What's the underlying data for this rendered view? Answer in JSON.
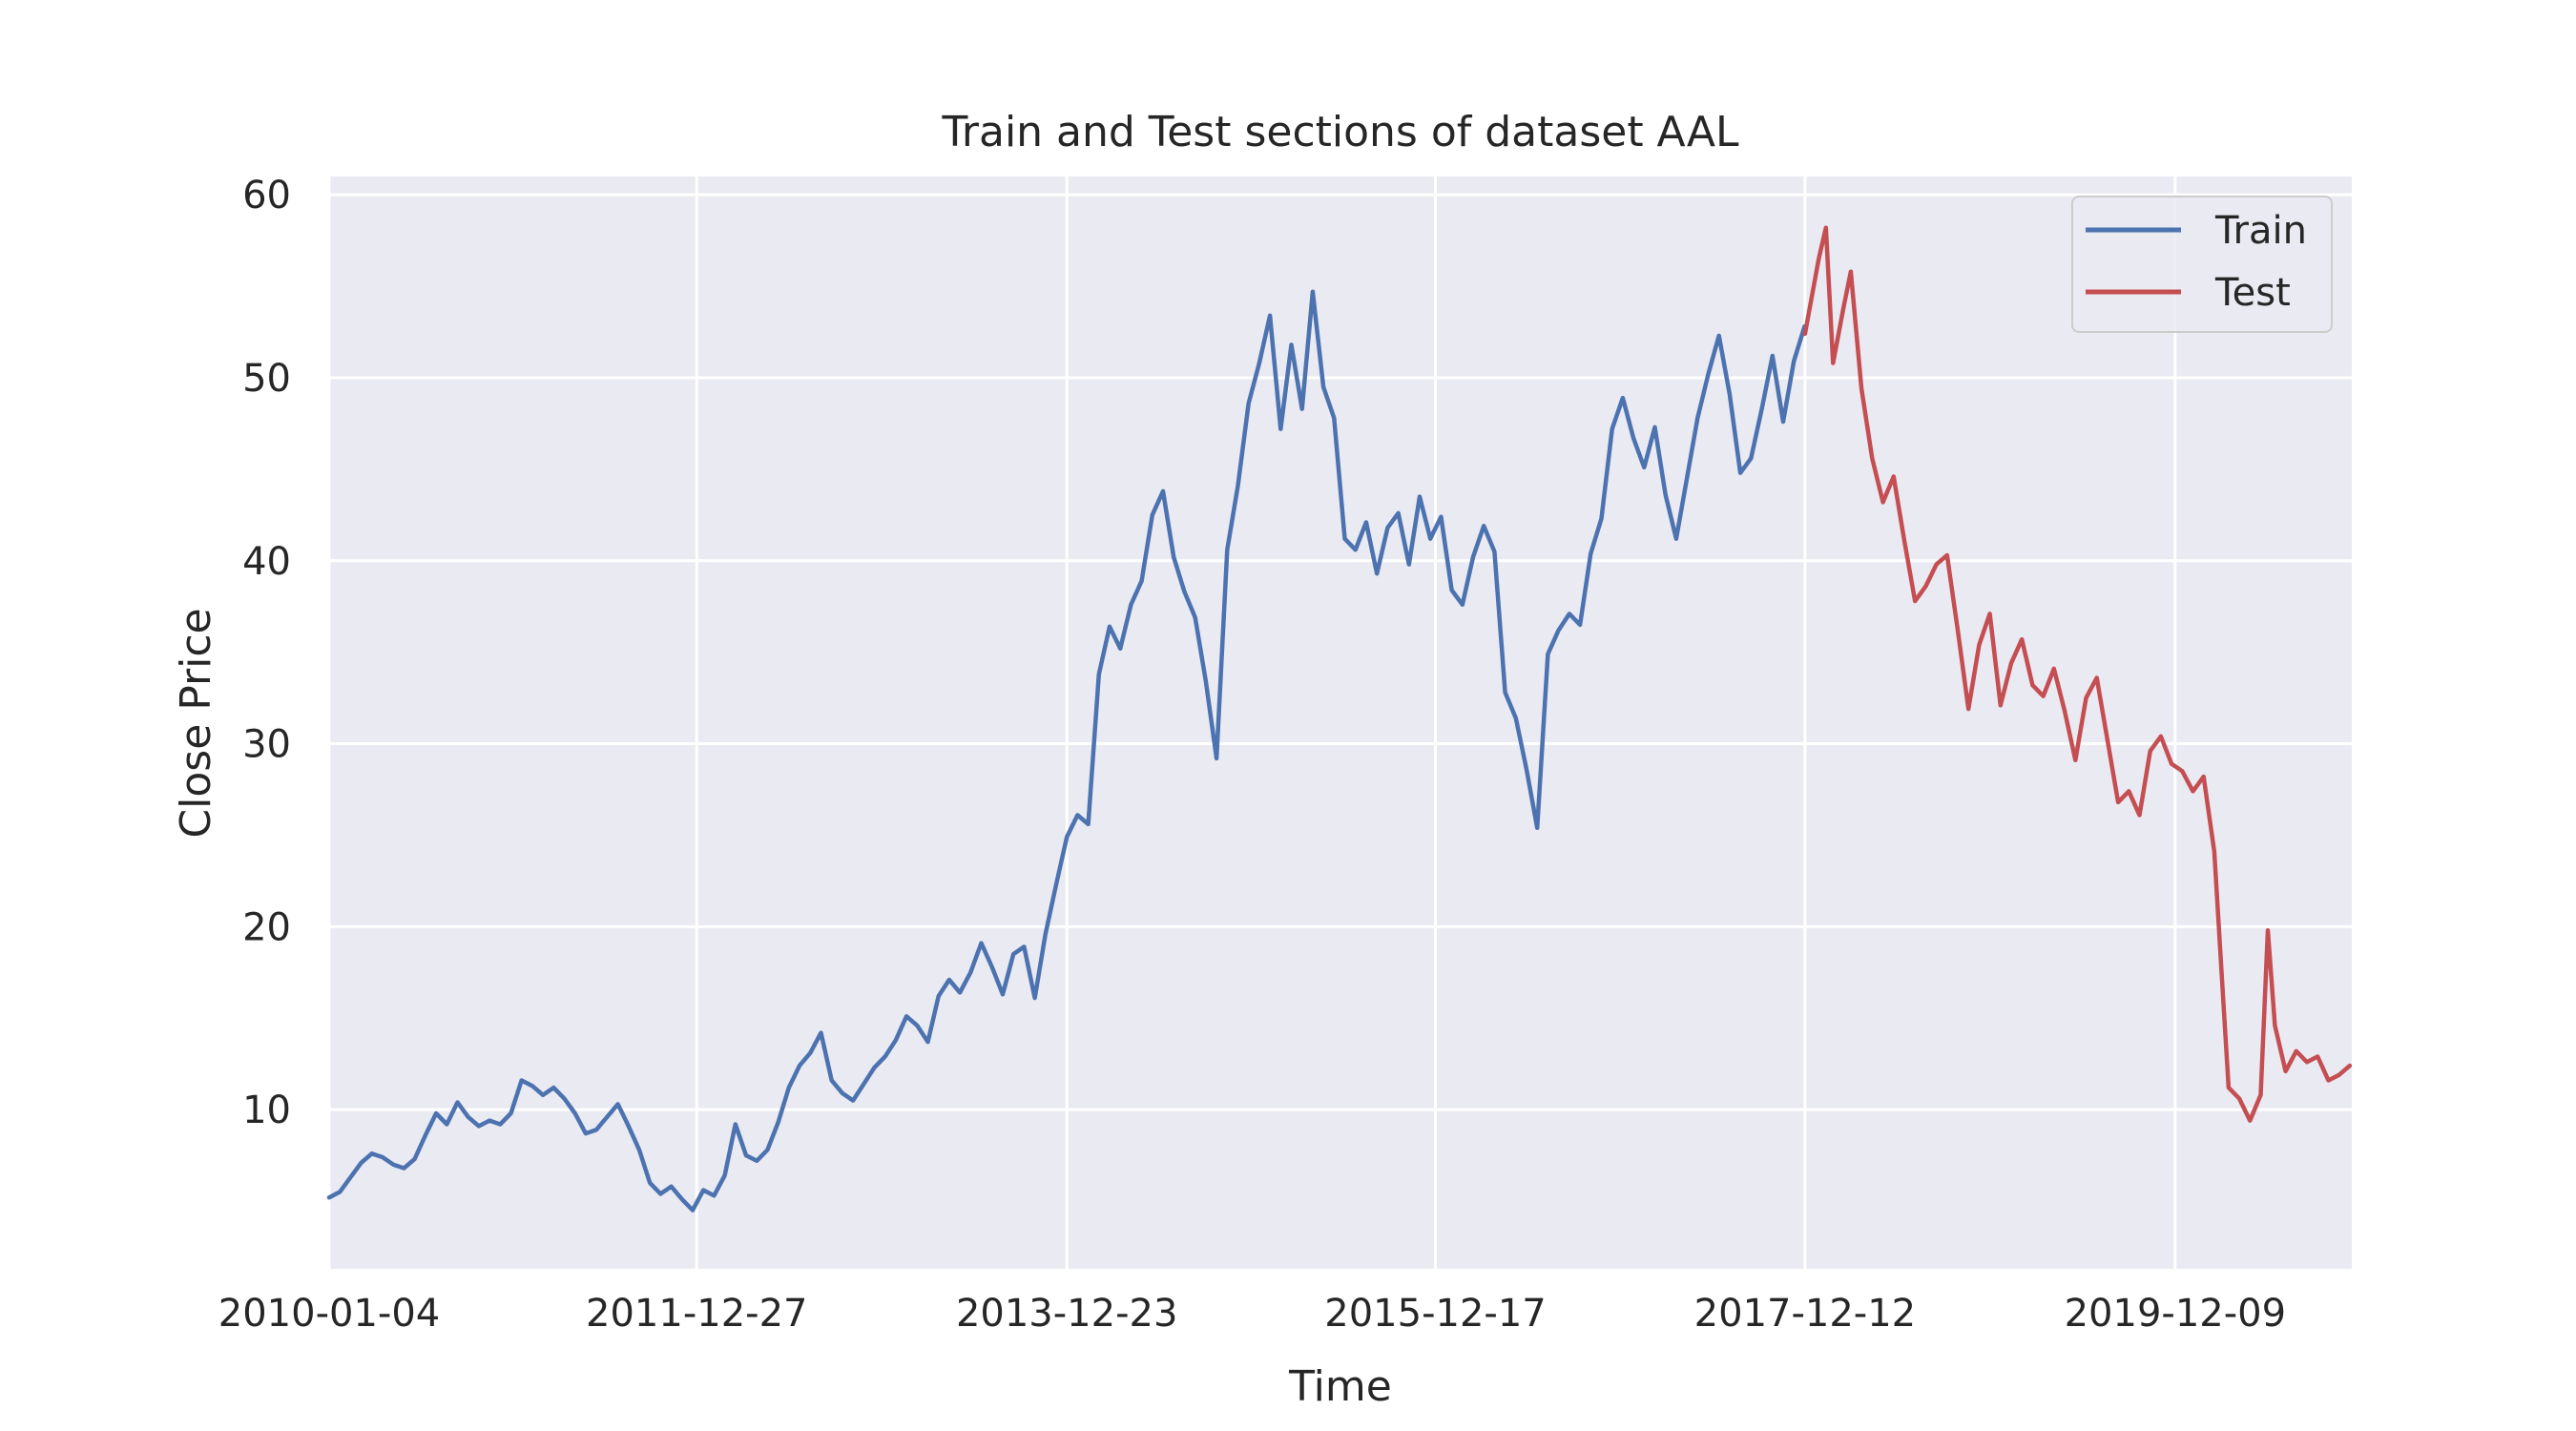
{
  "chart_data": {
    "type": "line",
    "title": "Train and Test sections of dataset AAL",
    "xlabel": "Time",
    "ylabel": "Close Price",
    "x_tick_labels": [
      "2010-01-04",
      "2011-12-27",
      "2013-12-23",
      "2015-12-17",
      "2017-12-12",
      "2019-12-09"
    ],
    "y_ticks": [
      10,
      20,
      30,
      40,
      50,
      60
    ],
    "xlim": [
      "2010-01-04",
      "2020-11-20"
    ],
    "ylim": [
      1.3,
      61.0
    ],
    "grid": true,
    "legend_position": "top-right",
    "series": [
      {
        "name": "Train",
        "color": "#4c72b0",
        "points": [
          [
            "2010-01-04",
            5.2
          ],
          [
            "2010-01-25",
            5.5
          ],
          [
            "2010-02-15",
            6.3
          ],
          [
            "2010-03-08",
            7.1
          ],
          [
            "2010-03-29",
            7.6
          ],
          [
            "2010-04-19",
            7.4
          ],
          [
            "2010-05-10",
            7.0
          ],
          [
            "2010-05-31",
            6.8
          ],
          [
            "2010-06-21",
            7.3
          ],
          [
            "2010-07-12",
            8.6
          ],
          [
            "2010-08-02",
            9.8
          ],
          [
            "2010-08-23",
            9.2
          ],
          [
            "2010-09-13",
            10.4
          ],
          [
            "2010-10-04",
            9.6
          ],
          [
            "2010-10-25",
            9.1
          ],
          [
            "2010-11-15",
            9.4
          ],
          [
            "2010-12-06",
            9.2
          ],
          [
            "2010-12-27",
            9.8
          ],
          [
            "2011-01-17",
            11.6
          ],
          [
            "2011-02-07",
            11.3
          ],
          [
            "2011-02-28",
            10.8
          ],
          [
            "2011-03-21",
            11.2
          ],
          [
            "2011-04-11",
            10.6
          ],
          [
            "2011-05-02",
            9.8
          ],
          [
            "2011-05-23",
            8.7
          ],
          [
            "2011-06-13",
            8.9
          ],
          [
            "2011-07-04",
            9.6
          ],
          [
            "2011-07-25",
            10.3
          ],
          [
            "2011-08-15",
            9.1
          ],
          [
            "2011-09-05",
            7.8
          ],
          [
            "2011-09-26",
            6.0
          ],
          [
            "2011-10-17",
            5.4
          ],
          [
            "2011-11-07",
            5.8
          ],
          [
            "2011-11-28",
            5.1
          ],
          [
            "2011-12-19",
            4.5
          ],
          [
            "2012-01-09",
            5.6
          ],
          [
            "2012-01-30",
            5.3
          ],
          [
            "2012-02-20",
            6.4
          ],
          [
            "2012-03-12",
            9.2
          ],
          [
            "2012-04-02",
            7.5
          ],
          [
            "2012-04-23",
            7.2
          ],
          [
            "2012-05-14",
            7.8
          ],
          [
            "2012-06-04",
            9.3
          ],
          [
            "2012-06-25",
            11.2
          ],
          [
            "2012-07-16",
            12.4
          ],
          [
            "2012-08-06",
            13.1
          ],
          [
            "2012-08-27",
            14.2
          ],
          [
            "2012-09-17",
            11.6
          ],
          [
            "2012-10-08",
            10.9
          ],
          [
            "2012-10-29",
            10.5
          ],
          [
            "2012-11-19",
            11.4
          ],
          [
            "2012-12-10",
            12.3
          ],
          [
            "2012-12-31",
            12.9
          ],
          [
            "2013-01-21",
            13.8
          ],
          [
            "2013-02-11",
            15.1
          ],
          [
            "2013-03-04",
            14.6
          ],
          [
            "2013-03-25",
            13.7
          ],
          [
            "2013-04-15",
            16.2
          ],
          [
            "2013-05-06",
            17.1
          ],
          [
            "2013-05-27",
            16.4
          ],
          [
            "2013-06-17",
            17.5
          ],
          [
            "2013-07-08",
            19.1
          ],
          [
            "2013-07-29",
            17.8
          ],
          [
            "2013-08-19",
            16.3
          ],
          [
            "2013-09-09",
            18.5
          ],
          [
            "2013-09-30",
            18.9
          ],
          [
            "2013-10-21",
            16.1
          ],
          [
            "2013-11-11",
            19.6
          ],
          [
            "2013-12-02",
            22.3
          ],
          [
            "2013-12-23",
            24.9
          ],
          [
            "2014-01-13",
            26.1
          ],
          [
            "2014-02-03",
            25.6
          ],
          [
            "2014-02-24",
            33.8
          ],
          [
            "2014-03-17",
            36.4
          ],
          [
            "2014-04-07",
            35.2
          ],
          [
            "2014-04-28",
            37.6
          ],
          [
            "2014-05-19",
            38.9
          ],
          [
            "2014-06-09",
            42.5
          ],
          [
            "2014-06-30",
            43.8
          ],
          [
            "2014-07-21",
            40.2
          ],
          [
            "2014-08-11",
            38.3
          ],
          [
            "2014-09-01",
            36.9
          ],
          [
            "2014-09-22",
            33.4
          ],
          [
            "2014-10-13",
            29.2
          ],
          [
            "2014-11-03",
            40.6
          ],
          [
            "2014-11-24",
            44.1
          ],
          [
            "2014-12-15",
            48.6
          ],
          [
            "2015-01-05",
            50.8
          ],
          [
            "2015-01-26",
            53.4
          ],
          [
            "2015-02-16",
            47.2
          ],
          [
            "2015-03-09",
            51.8
          ],
          [
            "2015-03-30",
            48.3
          ],
          [
            "2015-04-20",
            54.7
          ],
          [
            "2015-05-11",
            49.5
          ],
          [
            "2015-06-01",
            47.8
          ],
          [
            "2015-06-22",
            41.2
          ],
          [
            "2015-07-13",
            40.6
          ],
          [
            "2015-08-03",
            42.1
          ],
          [
            "2015-08-24",
            39.3
          ],
          [
            "2015-09-14",
            41.8
          ],
          [
            "2015-10-05",
            42.6
          ],
          [
            "2015-10-26",
            39.8
          ],
          [
            "2015-11-16",
            43.5
          ],
          [
            "2015-12-07",
            41.2
          ],
          [
            "2015-12-28",
            42.4
          ],
          [
            "2016-01-18",
            38.4
          ],
          [
            "2016-02-08",
            37.6
          ],
          [
            "2016-02-29",
            40.2
          ],
          [
            "2016-03-21",
            41.9
          ],
          [
            "2016-04-11",
            40.5
          ],
          [
            "2016-05-02",
            32.8
          ],
          [
            "2016-05-23",
            31.4
          ],
          [
            "2016-06-13",
            28.6
          ],
          [
            "2016-07-04",
            25.4
          ],
          [
            "2016-07-25",
            34.9
          ],
          [
            "2016-08-15",
            36.2
          ],
          [
            "2016-09-05",
            37.1
          ],
          [
            "2016-09-26",
            36.5
          ],
          [
            "2016-10-17",
            40.4
          ],
          [
            "2016-11-07",
            42.3
          ],
          [
            "2016-11-28",
            47.2
          ],
          [
            "2016-12-19",
            48.9
          ],
          [
            "2017-01-09",
            46.7
          ],
          [
            "2017-01-30",
            45.1
          ],
          [
            "2017-02-20",
            47.3
          ],
          [
            "2017-03-13",
            43.6
          ],
          [
            "2017-04-03",
            41.2
          ],
          [
            "2017-04-24",
            44.5
          ],
          [
            "2017-05-15",
            47.8
          ],
          [
            "2017-06-05",
            50.2
          ],
          [
            "2017-06-26",
            52.3
          ],
          [
            "2017-07-17",
            49.1
          ],
          [
            "2017-08-07",
            44.8
          ],
          [
            "2017-08-28",
            45.6
          ],
          [
            "2017-09-18",
            48.3
          ],
          [
            "2017-10-09",
            51.2
          ],
          [
            "2017-10-30",
            47.6
          ],
          [
            "2017-11-20",
            50.9
          ],
          [
            "2017-12-11",
            52.8
          ]
        ]
      },
      {
        "name": "Test",
        "color": "#c44e52",
        "points": [
          [
            "2017-12-12",
            52.4
          ],
          [
            "2018-01-08",
            56.5
          ],
          [
            "2018-01-22",
            58.2
          ],
          [
            "2018-02-05",
            50.8
          ],
          [
            "2018-02-26",
            53.9
          ],
          [
            "2018-03-12",
            55.8
          ],
          [
            "2018-04-02",
            49.4
          ],
          [
            "2018-04-23",
            45.6
          ],
          [
            "2018-05-14",
            43.2
          ],
          [
            "2018-06-04",
            44.6
          ],
          [
            "2018-06-25",
            41.1
          ],
          [
            "2018-07-16",
            37.8
          ],
          [
            "2018-08-06",
            38.6
          ],
          [
            "2018-08-27",
            39.8
          ],
          [
            "2018-09-17",
            40.3
          ],
          [
            "2018-10-08",
            36.2
          ],
          [
            "2018-10-29",
            31.9
          ],
          [
            "2018-11-19",
            35.4
          ],
          [
            "2018-12-10",
            37.1
          ],
          [
            "2018-12-31",
            32.1
          ],
          [
            "2019-01-21",
            34.4
          ],
          [
            "2019-02-11",
            35.7
          ],
          [
            "2019-03-04",
            33.2
          ],
          [
            "2019-03-25",
            32.6
          ],
          [
            "2019-04-15",
            34.1
          ],
          [
            "2019-05-06",
            31.8
          ],
          [
            "2019-05-27",
            29.1
          ],
          [
            "2019-06-17",
            32.5
          ],
          [
            "2019-07-08",
            33.6
          ],
          [
            "2019-07-29",
            30.2
          ],
          [
            "2019-08-19",
            26.8
          ],
          [
            "2019-09-09",
            27.4
          ],
          [
            "2019-09-30",
            26.1
          ],
          [
            "2019-10-21",
            29.6
          ],
          [
            "2019-11-11",
            30.4
          ],
          [
            "2019-12-02",
            28.9
          ],
          [
            "2019-12-23",
            28.5
          ],
          [
            "2020-01-13",
            27.4
          ],
          [
            "2020-02-03",
            28.2
          ],
          [
            "2020-02-24",
            24.1
          ],
          [
            "2020-03-09",
            17.6
          ],
          [
            "2020-03-23",
            11.2
          ],
          [
            "2020-04-13",
            10.6
          ],
          [
            "2020-05-04",
            9.4
          ],
          [
            "2020-05-25",
            10.8
          ],
          [
            "2020-06-08",
            19.8
          ],
          [
            "2020-06-22",
            14.6
          ],
          [
            "2020-07-13",
            12.1
          ],
          [
            "2020-08-03",
            13.2
          ],
          [
            "2020-08-24",
            12.6
          ],
          [
            "2020-09-14",
            12.9
          ],
          [
            "2020-10-05",
            11.6
          ],
          [
            "2020-10-26",
            11.9
          ],
          [
            "2020-11-16",
            12.4
          ]
        ]
      }
    ]
  }
}
